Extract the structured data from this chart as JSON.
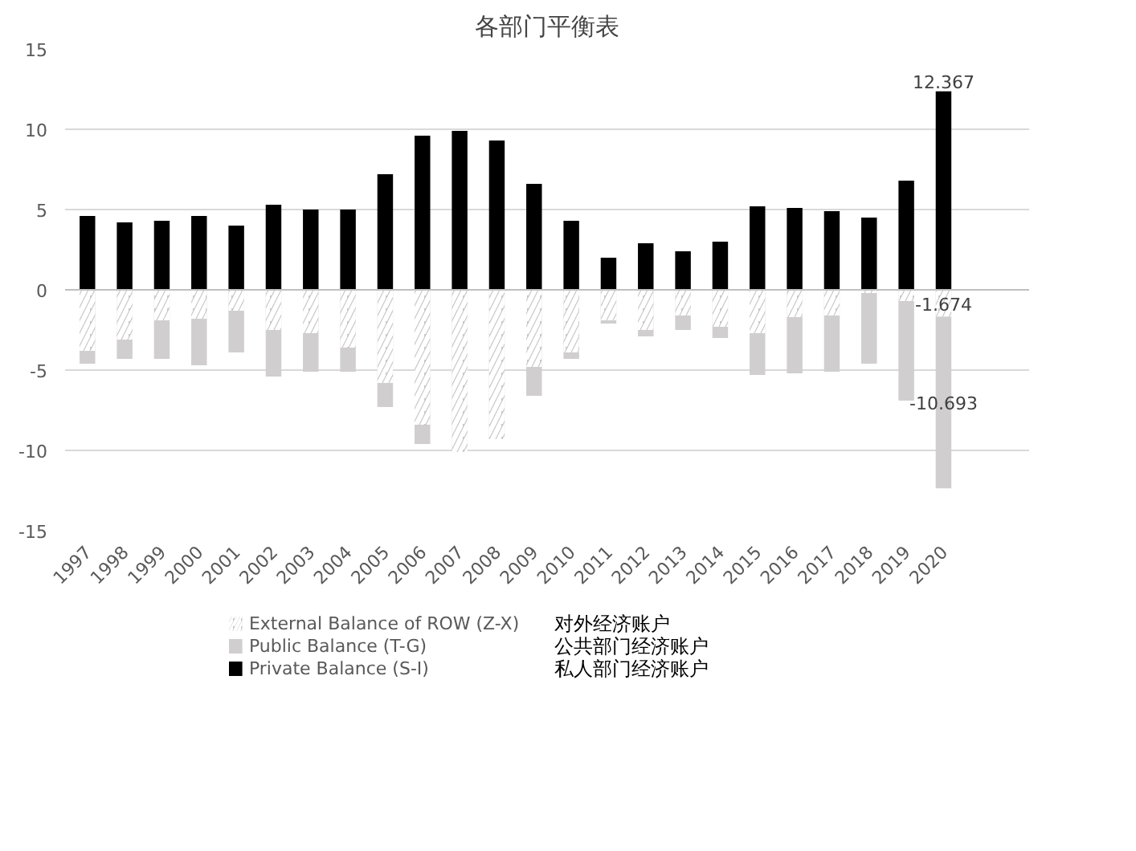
{
  "chart_data": {
    "type": "bar",
    "title": "各部门平衡表",
    "stacked": true,
    "grid": "y",
    "legend": "bottom left",
    "categories": [
      "1997",
      "1998",
      "1999",
      "2000",
      "2001",
      "2002",
      "2003",
      "2004",
      "2005",
      "2006",
      "2007",
      "2008",
      "2009",
      "2010",
      "2011",
      "2012",
      "2013",
      "2014",
      "2015",
      "2016",
      "2017",
      "2018",
      "2019",
      "2020"
    ],
    "ylim": [
      -15,
      15
    ],
    "yticks": [
      -15,
      -10,
      -5,
      0,
      5,
      10,
      15
    ],
    "series": [
      {
        "name": "External Balance of ROW (Z-X)",
        "color": "#c8c8c8",
        "values": [
          -3.8,
          -3.1,
          -1.9,
          -1.8,
          -1.3,
          -2.5,
          -2.7,
          -3.6,
          -5.8,
          -8.4,
          -10.1,
          -9.3,
          -4.8,
          -3.9,
          -1.9,
          -2.5,
          -1.6,
          -2.3,
          -2.7,
          -1.7,
          -1.6,
          -0.2,
          -0.7,
          -1.674
        ],
        "value_labels": [
          null,
          null,
          null,
          null,
          null,
          null,
          null,
          null,
          null,
          null,
          null,
          null,
          null,
          null,
          null,
          null,
          null,
          null,
          null,
          null,
          null,
          null,
          null,
          "-1.674"
        ]
      },
      {
        "name": "Public Balance (T-G)",
        "color": "#d0cece",
        "values": [
          -0.8,
          -1.2,
          -2.4,
          -2.9,
          -2.6,
          -2.9,
          -2.4,
          -1.5,
          -1.5,
          -1.2,
          0,
          0,
          -1.8,
          -0.4,
          -0.2,
          -0.4,
          -0.9,
          -0.7,
          -2.6,
          -3.5,
          -3.5,
          -4.4,
          -6.2,
          -10.693
        ],
        "value_labels": [
          null,
          null,
          null,
          null,
          null,
          null,
          null,
          null,
          null,
          null,
          null,
          null,
          null,
          null,
          null,
          null,
          null,
          null,
          null,
          null,
          null,
          null,
          null,
          "-10.693"
        ]
      },
      {
        "name": "Private Balance (S-I)",
        "color": "#000000",
        "values": [
          4.6,
          4.2,
          4.3,
          4.6,
          4.0,
          5.3,
          5.0,
          5.0,
          7.2,
          9.6,
          9.9,
          9.3,
          6.6,
          4.3,
          2.0,
          2.9,
          2.4,
          3.0,
          5.2,
          5.1,
          4.9,
          4.5,
          6.8,
          12.367
        ],
        "value_labels": [
          null,
          null,
          null,
          null,
          null,
          null,
          null,
          null,
          null,
          null,
          null,
          null,
          null,
          null,
          null,
          null,
          null,
          null,
          null,
          null,
          null,
          null,
          null,
          "12.367"
        ]
      }
    ],
    "annotations": [
      "对外经济账户",
      "公共部门经济账户",
      "私人部门经济账户"
    ]
  }
}
